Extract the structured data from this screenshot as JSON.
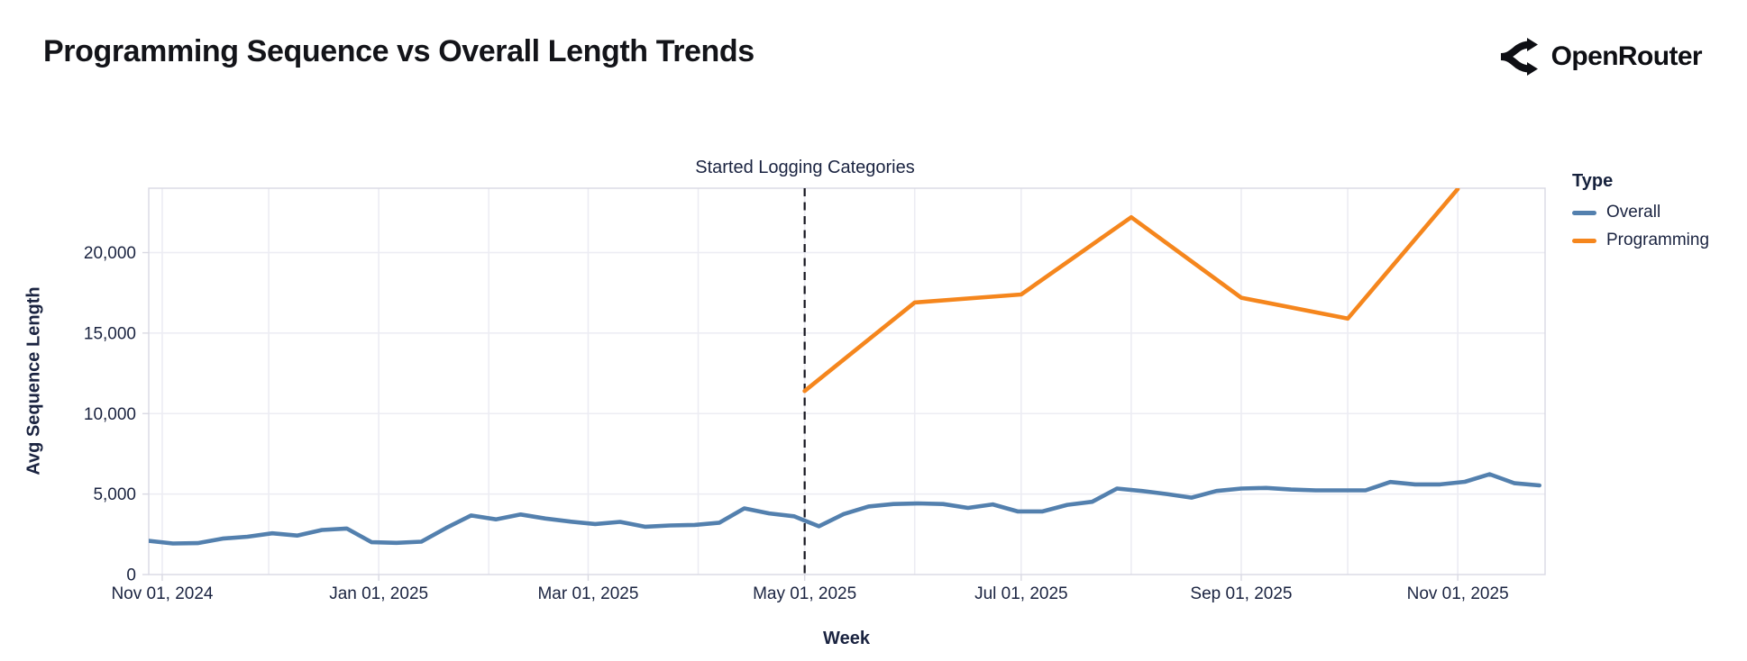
{
  "header": {
    "title": "Programming Sequence vs Overall Length Trends",
    "brand": "OpenRouter"
  },
  "legend": {
    "title": "Type",
    "items": [
      {
        "label": "Overall",
        "color": "#5380ae"
      },
      {
        "label": "Programming",
        "color": "#f5861d"
      }
    ]
  },
  "chart_data": {
    "type": "line",
    "title": "Programming Sequence vs Overall Length Trends",
    "xlabel": "Week",
    "ylabel": "Avg Sequence Length",
    "ylim": [
      0,
      24000
    ],
    "grid": true,
    "legend_position": "right",
    "y_ticks": {
      "values": [
        0,
        5000,
        10000,
        15000,
        20000
      ],
      "labels": [
        "0",
        "5,000",
        "10,000",
        "15,000",
        "20,000"
      ]
    },
    "x_ticks": [
      {
        "day": 0,
        "label": "Nov 01, 2024"
      },
      {
        "day": 61,
        "label": "Jan 01, 2025"
      },
      {
        "day": 120,
        "label": "Mar 01, 2025"
      },
      {
        "day": 181,
        "label": "May 01, 2025"
      },
      {
        "day": 242,
        "label": "Jul 01, 2025"
      },
      {
        "day": 304,
        "label": "Sep 01, 2025"
      },
      {
        "day": 365,
        "label": "Nov 01, 2025"
      }
    ],
    "month_gridline_days": [
      0,
      30,
      61,
      92,
      120,
      151,
      181,
      212,
      242,
      273,
      304,
      334,
      365
    ],
    "x_domain_days": [
      -3.8,
      389.6
    ],
    "annotation": {
      "text": "Started Logging Categories",
      "day": 181,
      "color": "#15151f"
    },
    "series": [
      {
        "name": "Overall",
        "color": "#5380ae",
        "start_day": -4,
        "step_days": 7,
        "values": [
          2100,
          1930,
          1950,
          2230,
          2350,
          2560,
          2420,
          2770,
          2860,
          2010,
          1970,
          2040,
          2900,
          3670,
          3430,
          3730,
          3480,
          3290,
          3140,
          3270,
          2970,
          3050,
          3080,
          3220,
          4110,
          3800,
          3620,
          3000,
          3760,
          4230,
          4380,
          4420,
          4380,
          4140,
          4360,
          3920,
          3920,
          4330,
          4520,
          5340,
          5190,
          5000,
          4780,
          5190,
          5340,
          5380,
          5280,
          5230,
          5230,
          5230,
          5750,
          5600,
          5600,
          5760,
          6230,
          5670,
          5540
        ]
      },
      {
        "name": "Programming",
        "color": "#f5861d",
        "days": [
          181,
          212,
          242,
          273,
          304,
          334,
          365
        ],
        "values": [
          11400,
          16900,
          17400,
          22200,
          17200,
          15900,
          23950
        ]
      }
    ]
  }
}
